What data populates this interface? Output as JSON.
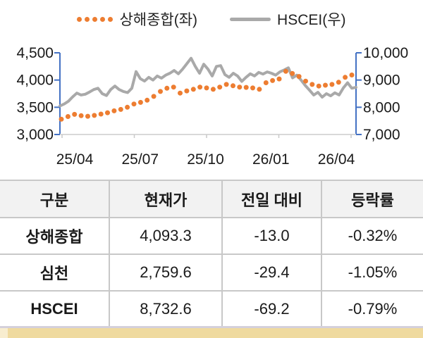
{
  "colors": {
    "orange": "#ED7D31",
    "gray": "#A9A9A9",
    "axis_blue": "#4472C4",
    "grid": "#D9D9D9",
    "tick_gray": "#C9C9C9",
    "table_border": "#C8C8C8",
    "header_bg": "#F2F2F2",
    "accent_tan": "#EFDA9F",
    "accent_tan_light": "#F8EDCF",
    "strip_lavender": "#D4D0DB",
    "text": "#1A1A1A"
  },
  "chart_data": {
    "type": "line",
    "title": "",
    "legend_position": "top-center",
    "grid": "bottom-line-only",
    "x_ticks": [
      "25/04",
      "25/07",
      "25/10",
      "26/01",
      "26/04"
    ],
    "left_axis": {
      "min": 3000,
      "max": 4500,
      "labels": [
        "4,500",
        "4,000",
        "3,500",
        "3,000"
      ]
    },
    "right_axis": {
      "min": 7000,
      "max": 10000,
      "labels": [
        "10,000",
        "9,000",
        "8,000",
        "7,000"
      ]
    },
    "series": [
      {
        "name": "상해종합",
        "legend_label": "상해종합(좌)",
        "axis": "left",
        "style": "dotted",
        "color": "#ED7D31",
        "values": [
          3280,
          3330,
          3370,
          3345,
          3335,
          3350,
          3375,
          3400,
          3435,
          3460,
          3500,
          3560,
          3590,
          3630,
          3700,
          3790,
          3850,
          3870,
          3760,
          3800,
          3830,
          3870,
          3855,
          3830,
          3870,
          3920,
          3895,
          3870,
          3865,
          3855,
          3830,
          3950,
          3990,
          4020,
          4160,
          4120,
          4065,
          3980,
          3920,
          3890,
          3905,
          3920,
          3960,
          4050,
          4093
        ]
      },
      {
        "name": "HSCEI",
        "legend_label": "HSCEI(우)",
        "axis": "right",
        "style": "line",
        "color": "#A9A9A9",
        "values": [
          8050,
          8120,
          8220,
          8380,
          8520,
          8450,
          8480,
          8560,
          8650,
          8700,
          8500,
          8430,
          8650,
          8780,
          8650,
          8580,
          8540,
          8700,
          9310,
          9050,
          8960,
          9100,
          9000,
          9150,
          9070,
          9180,
          9250,
          9350,
          9230,
          9400,
          9600,
          9800,
          9500,
          9250,
          9580,
          9400,
          9150,
          9500,
          9530,
          9200,
          9100,
          9250,
          9150,
          8950,
          9100,
          9230,
          9150,
          9280,
          9220,
          9300,
          9250,
          9180,
          9300,
          9370,
          9450,
          9080,
          9180,
          9000,
          8800,
          8630,
          8450,
          8550,
          8370,
          8500,
          8420,
          8530,
          8450,
          8710,
          8900,
          8700,
          8732
        ]
      }
    ]
  },
  "table": {
    "columns": [
      "구분",
      "현재가",
      "전일 대비",
      "등락률"
    ],
    "rows": [
      {
        "name": "상해종합",
        "price": "4,093.3",
        "change": "-13.0",
        "pct": "-0.32%"
      },
      {
        "name": "심천",
        "price": "2,759.6",
        "change": "-29.4",
        "pct": "-1.05%"
      },
      {
        "name": "HSCEI",
        "price": "8,732.6",
        "change": "-69.2",
        "pct": "-0.79%"
      }
    ]
  }
}
